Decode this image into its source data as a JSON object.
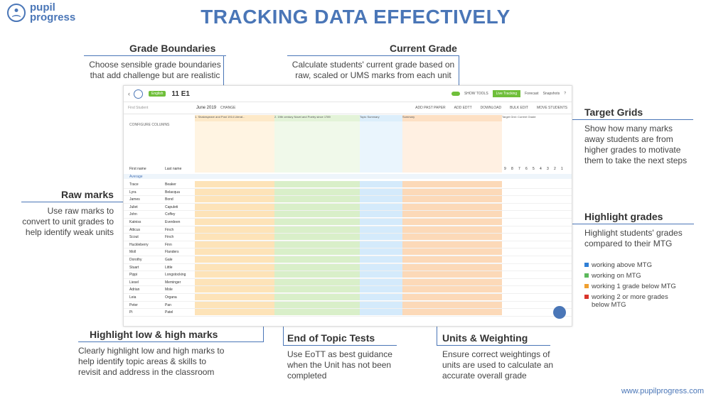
{
  "brand": {
    "line1": "pupil",
    "line2": "progress",
    "logo_icon": "person-book-icon"
  },
  "title": "TRACKING DATA EFFECTIVELY",
  "footer": "www.pupilprogress.com",
  "callouts": {
    "grade_boundaries": {
      "heading": "Grade Boundaries",
      "desc": "Choose sensible grade boundaries that add challenge but are realistic"
    },
    "current_grade": {
      "heading": "Current Grade",
      "desc": "Calculate students' current grade based on raw, scaled or UMS marks from each unit"
    },
    "target_grids": {
      "heading": "Target Grids",
      "desc": "Show how many marks away students are from higher grades to motivate them to take the next steps"
    },
    "raw_marks": {
      "heading": "Raw marks",
      "desc": "Use raw marks to convert to unit grades to help identify weak units"
    },
    "highlight_grades": {
      "heading": "Highlight grades",
      "desc": "Highlight students' grades compared to their MTG"
    },
    "highlight_low_high": {
      "heading": "Highlight low & high marks",
      "desc": "Clearly highlight low and high marks to help identify topic areas & skills to revisit and address in the classroom"
    },
    "end_of_topic": {
      "heading": "End of Topic Tests",
      "desc": "Use EoTT as best guidance when the Unit has not been completed"
    },
    "units_weighting": {
      "heading": "Units & Weighting",
      "desc": "Ensure correct weightings of units are used to calculate an accurate overall grade"
    }
  },
  "legend": [
    {
      "label": "working above MTG",
      "color": "#2f7fd6"
    },
    {
      "label": "working on MTG",
      "color": "#5cb85c"
    },
    {
      "label": "working 1 grade below MTG",
      "color": "#f0a030"
    },
    {
      "label": "working 2 or more grades below MTG",
      "color": "#d9342b"
    }
  ],
  "app": {
    "subject_chip": "English",
    "class_name": "11 E1",
    "boundaries_label": "June 2019",
    "boundaries_action": "CHANGE",
    "search_placeholder": "Find Student",
    "configure": "CONFIGURE COLUMNS",
    "show_tools": "SHOW TOOLS",
    "live_tracking": "Live Tracking",
    "forecast": "Forecast",
    "snapshots": "Snapshots",
    "actions": [
      "ADD PAST PAPER",
      "ADD EDTT",
      "DOWNLOAD",
      "BULK EDIT",
      "MOVE STUDENTS"
    ],
    "col_first": "First name",
    "col_last": "Last name",
    "average": "Average",
    "sections": [
      "1. Shakespeare and Post 1914 Literat...",
      "2. 19th century Novel and Poetry since 1789",
      "Topic Summary",
      "Summary",
      "Target Grid: Current Grade"
    ],
    "target_grid_headers": [
      "9",
      "8",
      "7",
      "6",
      "5",
      "4",
      "3",
      "2",
      "1"
    ],
    "students": [
      {
        "first": "Trace",
        "last": "Beaker"
      },
      {
        "first": "Lyra",
        "last": "Belacqua"
      },
      {
        "first": "James",
        "last": "Bond"
      },
      {
        "first": "Juliet",
        "last": "Capuleti"
      },
      {
        "first": "John",
        "last": "Coffey"
      },
      {
        "first": "Katniss",
        "last": "Everdeen"
      },
      {
        "first": "Atticus",
        "last": "Finch"
      },
      {
        "first": "Scout",
        "last": "Finch"
      },
      {
        "first": "Huckleberry",
        "last": "Finn"
      },
      {
        "first": "Moll",
        "last": "Flanders"
      },
      {
        "first": "Dorothy",
        "last": "Gale"
      },
      {
        "first": "Stuart",
        "last": "Little"
      },
      {
        "first": "Pippi",
        "last": "Longstocking"
      },
      {
        "first": "Liesel",
        "last": "Meminger"
      },
      {
        "first": "Adrian",
        "last": "Mole"
      },
      {
        "first": "Leia",
        "last": "Organa"
      },
      {
        "first": "Peter",
        "last": "Pan"
      },
      {
        "first": "Pi",
        "last": "Patel"
      }
    ]
  }
}
